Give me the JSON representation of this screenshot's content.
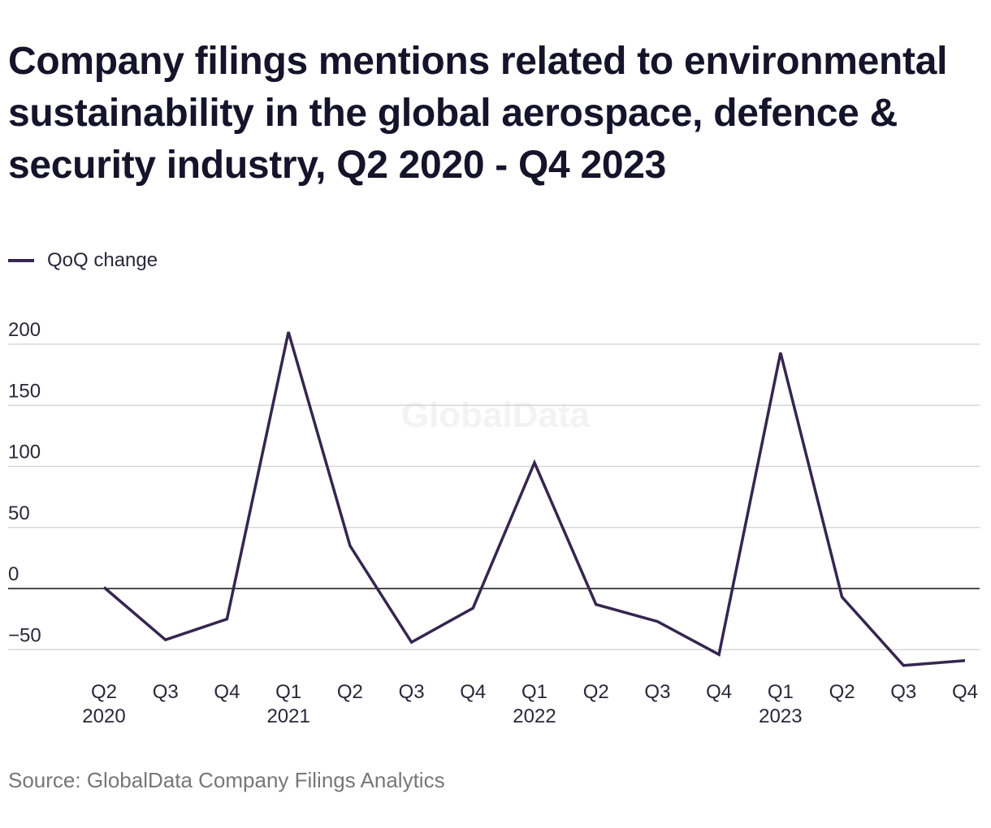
{
  "title": "Company filings mentions related to environmental sustainability in the global aerospace, defence & security industry, Q2 2020 - Q4 2023",
  "source": "Source: GlobalData Company Filings Analytics",
  "watermark": "GlobalData",
  "colors": {
    "line": "#35264f",
    "grid": "#d0d0d0",
    "zero": "#111111",
    "text": "#2a2838",
    "watermark": "#f3f3f3"
  },
  "chart_data": {
    "type": "line",
    "title": "Company filings mentions related to environmental sustainability in the global aerospace, defence & security industry, Q2 2020 - Q4 2023",
    "xlabel": "",
    "ylabel": "",
    "ylim": [
      -50,
      200
    ],
    "yticks": [
      200,
      150,
      100,
      50,
      0,
      -50
    ],
    "grid": true,
    "legend_position": "top-left",
    "categories": [
      "Q2 2020",
      "Q3 2020",
      "Q4 2020",
      "Q1 2021",
      "Q2 2021",
      "Q3 2021",
      "Q4 2021",
      "Q1 2022",
      "Q2 2022",
      "Q3 2022",
      "Q4 2022",
      "Q1 2023",
      "Q2 2023",
      "Q3 2023",
      "Q4 2023"
    ],
    "tick_labels": [
      [
        "Q2",
        "2020"
      ],
      [
        "Q3",
        ""
      ],
      [
        "Q4",
        ""
      ],
      [
        "Q1",
        "2021"
      ],
      [
        "Q2",
        ""
      ],
      [
        "Q3",
        ""
      ],
      [
        "Q4",
        ""
      ],
      [
        "Q1",
        "2022"
      ],
      [
        "Q2",
        ""
      ],
      [
        "Q3",
        ""
      ],
      [
        "Q4",
        ""
      ],
      [
        "Q1",
        "2023"
      ],
      [
        "Q2",
        ""
      ],
      [
        "Q3",
        ""
      ],
      [
        "Q4",
        ""
      ]
    ],
    "series": [
      {
        "name": "QoQ change",
        "values": [
          1,
          -42,
          -25,
          210,
          35,
          -44,
          -16,
          103,
          -13,
          -27,
          -54,
          193,
          -7,
          -63,
          -59
        ]
      }
    ]
  }
}
